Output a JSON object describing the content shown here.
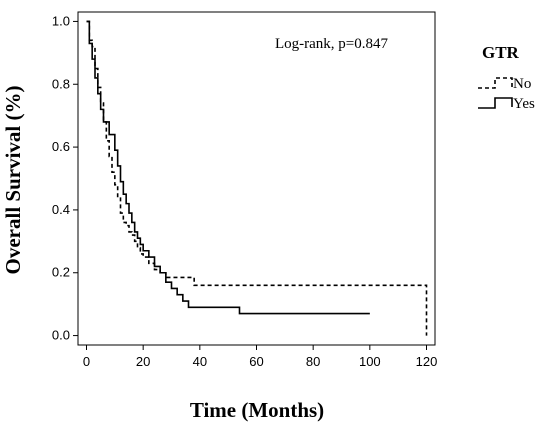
{
  "chart_data": {
    "type": "line",
    "step": true,
    "title": "",
    "xlabel": "Time (Months)",
    "ylabel": "Overall Survival (%)",
    "xlim": [
      -3,
      123
    ],
    "ylim": [
      -0.03,
      1.03
    ],
    "xticks": [
      0,
      20,
      40,
      60,
      80,
      100,
      120
    ],
    "xtick_labels": [
      "0",
      "20",
      "40",
      "60",
      "80",
      "100",
      "120"
    ],
    "yticks": [
      0.0,
      0.2,
      0.4,
      0.6,
      0.8,
      1.0
    ],
    "ytick_labels": [
      "0.0",
      "0.2",
      "0.4",
      "0.6",
      "0.8",
      "1.0"
    ],
    "grid": false,
    "annotation": "Log-rank, p=0.847",
    "legend": {
      "title": "GTR",
      "placement": "right",
      "entries": [
        "No",
        "Yes"
      ]
    },
    "series": [
      {
        "name": "No",
        "line_style": "dashed",
        "color": "#000000",
        "x": [
          0,
          1,
          2,
          3,
          4,
          5,
          6,
          7,
          8,
          9,
          10,
          11,
          12,
          13,
          14,
          15,
          16,
          17,
          18,
          19,
          20,
          22,
          24,
          26,
          28,
          38,
          120,
          120
        ],
        "y": [
          1.0,
          0.94,
          0.92,
          0.85,
          0.79,
          0.74,
          0.68,
          0.62,
          0.57,
          0.52,
          0.48,
          0.44,
          0.39,
          0.36,
          0.35,
          0.33,
          0.32,
          0.3,
          0.28,
          0.26,
          0.25,
          0.23,
          0.21,
          0.2,
          0.185,
          0.16,
          0.16,
          0.0
        ]
      },
      {
        "name": "Yes",
        "line_style": "solid",
        "color": "#000000",
        "x": [
          0,
          1,
          2,
          3,
          4,
          5,
          6,
          8,
          10,
          11,
          12,
          13,
          14,
          15,
          16,
          17,
          18,
          19,
          20,
          22,
          24,
          26,
          28,
          30,
          32,
          34,
          36,
          54,
          100
        ],
        "y": [
          1.0,
          0.93,
          0.88,
          0.82,
          0.77,
          0.72,
          0.68,
          0.64,
          0.59,
          0.54,
          0.49,
          0.45,
          0.42,
          0.39,
          0.36,
          0.33,
          0.31,
          0.29,
          0.27,
          0.25,
          0.22,
          0.2,
          0.17,
          0.15,
          0.13,
          0.11,
          0.09,
          0.07,
          0.07
        ]
      }
    ]
  }
}
